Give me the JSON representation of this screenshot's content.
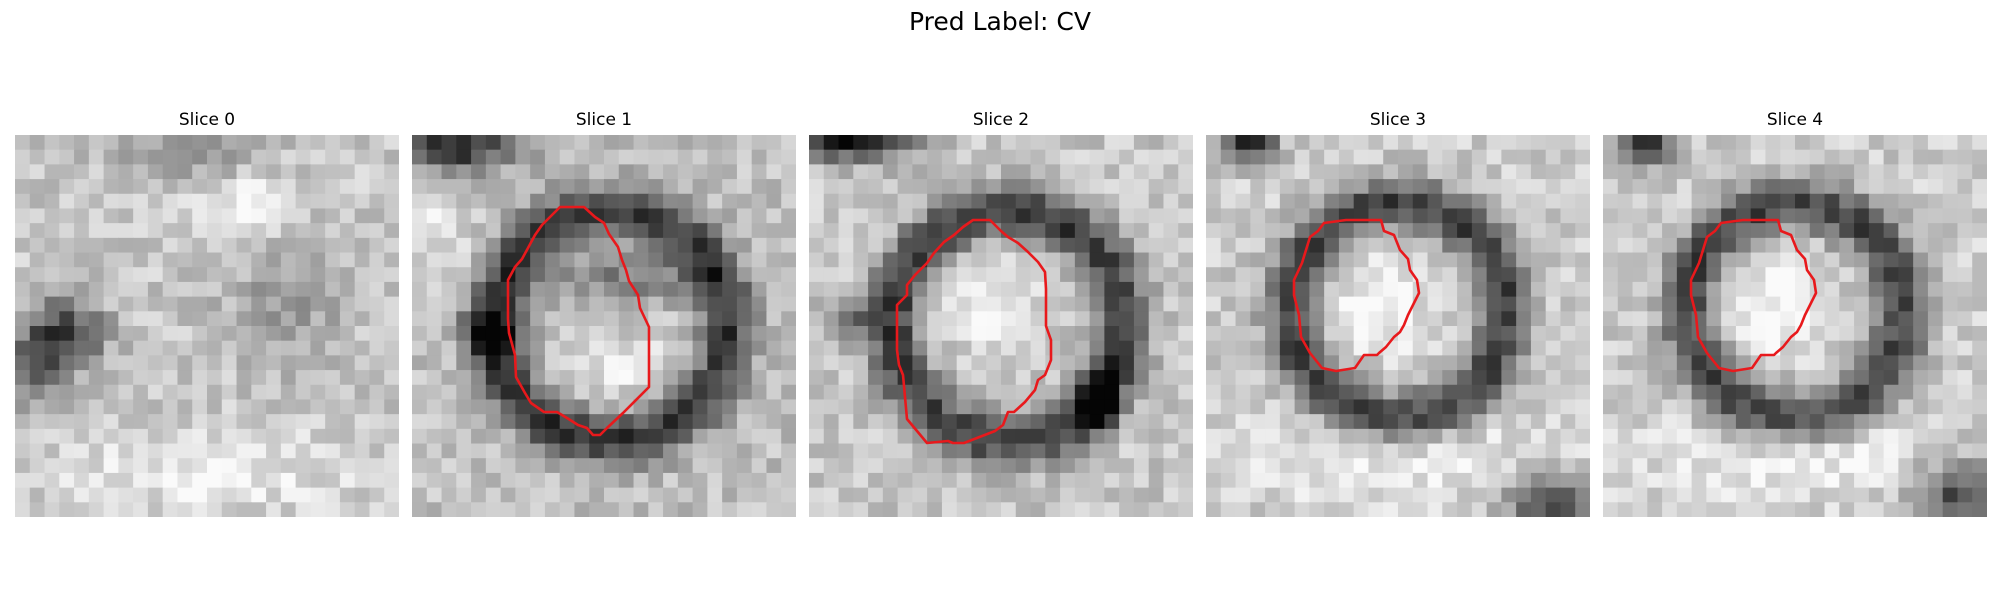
{
  "figure": {
    "title": "Pred Label: CV"
  },
  "slices": [
    {
      "title": "Slice 0",
      "has_contour": false
    },
    {
      "title": "Slice 1",
      "has_contour": true
    },
    {
      "title": "Slice 2",
      "has_contour": true
    },
    {
      "title": "Slice 3",
      "has_contour": true
    },
    {
      "title": "Slice 4",
      "has_contour": true
    }
  ],
  "colors": {
    "contour": "#e8191c",
    "background": "#ffffff"
  }
}
